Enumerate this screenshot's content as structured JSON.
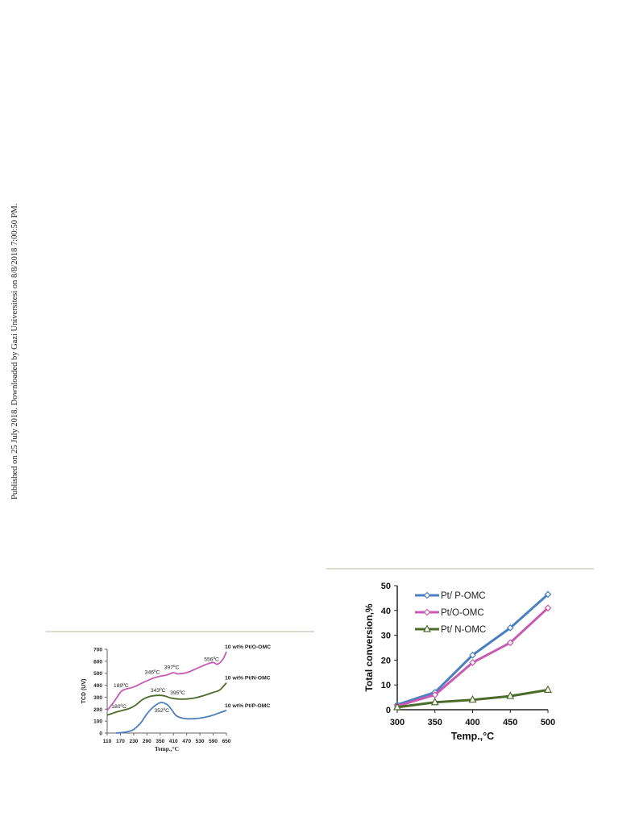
{
  "sidebar_text": "Published on 25 July 2018. Downloaded by Gazi Universitesi on 8/8/2018 7:00:50 PM.",
  "chart_data": [
    {
      "type": "line",
      "title": "",
      "xlabel": "Temp.,°C",
      "ylabel": "TCD (UV)",
      "ylim": [
        0,
        700
      ],
      "xlim": [
        110,
        650
      ],
      "x_ticks": [
        "110",
        "170",
        "230",
        "290",
        "350",
        "410",
        "470",
        "530",
        "590",
        "650"
      ],
      "y_ticks": [
        "0",
        "100",
        "200",
        "300",
        "400",
        "500",
        "600",
        "700"
      ],
      "grid": false,
      "series": [
        {
          "name": "10 wt% Pt/O-OMC",
          "color": "#c75bb4",
          "x": [
            110,
            140,
            170,
            190,
            230,
            270,
            320,
            350,
            380,
            410,
            430,
            470,
            510,
            560,
            590,
            610,
            635,
            650
          ],
          "y": [
            190,
            260,
            340,
            365,
            385,
            420,
            460,
            475,
            485,
            505,
            495,
            505,
            535,
            575,
            590,
            575,
            620,
            680
          ]
        },
        {
          "name": "10 wt% Pt/N-OMC",
          "color": "#4d6b2a",
          "x": [
            110,
            150,
            180,
            210,
            240,
            270,
            300,
            343,
            370,
            395,
            430,
            470,
            510,
            550,
            590,
            620,
            650
          ],
          "y": [
            150,
            175,
            190,
            205,
            235,
            280,
            305,
            315,
            310,
            295,
            285,
            285,
            295,
            315,
            340,
            360,
            420
          ]
        },
        {
          "name": "10 wt% Pt/P-OMC",
          "color": "#4c7fc0",
          "x": [
            150,
            180,
            210,
            230,
            260,
            290,
            320,
            352,
            380,
            400,
            420,
            440,
            470,
            500,
            530,
            560,
            590,
            620,
            650
          ],
          "y": [
            0,
            5,
            15,
            30,
            80,
            160,
            220,
            255,
            240,
            200,
            150,
            130,
            120,
            120,
            125,
            135,
            150,
            170,
            190
          ]
        }
      ],
      "annotations": [
        {
          "text": "189ºC",
          "x": 190,
          "y": 365
        },
        {
          "text": "180ºC",
          "x": 180,
          "y": 190
        },
        {
          "text": "346ºC",
          "x": 346,
          "y": 475
        },
        {
          "text": "397ºC",
          "x": 397,
          "y": 500
        },
        {
          "text": "556ºC",
          "x": 556,
          "y": 575
        },
        {
          "text": "343ºC",
          "x": 343,
          "y": 315
        },
        {
          "text": "395ºC",
          "x": 395,
          "y": 295
        },
        {
          "text": "352ºC",
          "x": 352,
          "y": 255
        }
      ]
    },
    {
      "type": "line",
      "title": "",
      "xlabel": "Temp.,°C",
      "ylabel": "Total conversion,%",
      "ylim": [
        0,
        50
      ],
      "x": [
        300,
        350,
        400,
        450,
        500
      ],
      "x_ticks": [
        "300",
        "350",
        "400",
        "450",
        "500"
      ],
      "y_ticks": [
        "0",
        "10",
        "20",
        "30",
        "40",
        "50"
      ],
      "grid": false,
      "legend": "top-left",
      "series": [
        {
          "name": "Pt/ P-OMC",
          "color": "#4c7fc0",
          "marker": "diamond",
          "values": [
            2,
            7,
            22,
            33,
            46.5
          ]
        },
        {
          "name": "Pt/O-OMC",
          "color": "#c75bb4",
          "marker": "diamond",
          "values": [
            1.5,
            6,
            19,
            27,
            41
          ]
        },
        {
          "name": "Pt/ N-OMC",
          "color": "#4d6b2a",
          "marker": "triangle",
          "values": [
            1,
            3,
            4,
            5.5,
            8
          ]
        }
      ]
    }
  ]
}
